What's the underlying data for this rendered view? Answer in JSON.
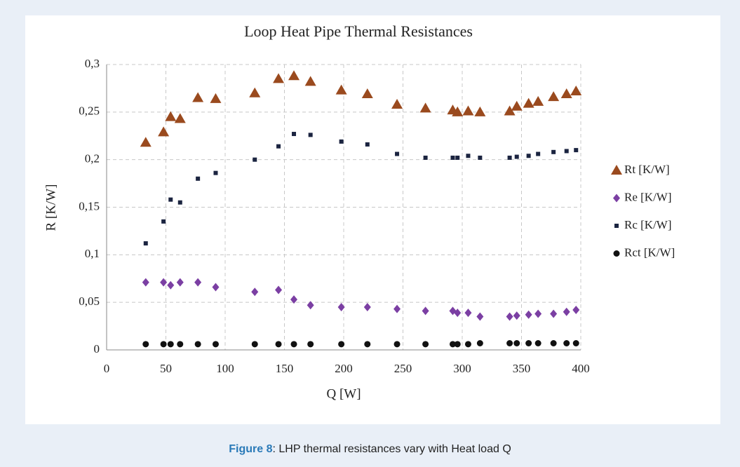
{
  "chart_data": {
    "type": "scatter",
    "title": "Loop Heat Pipe Thermal Resistances",
    "xlabel": "Q [W]",
    "ylabel": "R [K/W]",
    "x": [
      33,
      48,
      54,
      62,
      77,
      92,
      125,
      145,
      158,
      172,
      198,
      220,
      245,
      269,
      292,
      296,
      305,
      315,
      340,
      346,
      356,
      364,
      377,
      388,
      396
    ],
    "series": [
      {
        "name": "Rt [K/W]",
        "color": "#9a4a1e",
        "marker": "triangle",
        "values": [
          0.218,
          0.229,
          0.245,
          0.243,
          0.265,
          0.264,
          0.27,
          0.285,
          0.288,
          0.282,
          0.273,
          0.269,
          0.258,
          0.254,
          0.252,
          0.25,
          0.251,
          0.25,
          0.251,
          0.256,
          0.259,
          0.261,
          0.266,
          0.269,
          0.272
        ]
      },
      {
        "name": "Re [K/W]",
        "color": "#7b3fa3",
        "marker": "diamond",
        "values": [
          0.071,
          0.071,
          0.068,
          0.071,
          0.071,
          0.066,
          0.061,
          0.063,
          0.053,
          0.047,
          0.045,
          0.045,
          0.043,
          0.041,
          0.041,
          0.039,
          0.039,
          0.035,
          0.035,
          0.036,
          0.037,
          0.038,
          0.038,
          0.04,
          0.042
        ]
      },
      {
        "name": "Rc [K/W]",
        "color": "#1b2440",
        "marker": "square",
        "values": [
          0.112,
          0.135,
          0.158,
          0.155,
          0.18,
          0.186,
          0.2,
          0.214,
          0.227,
          0.226,
          0.219,
          0.216,
          0.206,
          0.202,
          0.202,
          0.202,
          0.204,
          0.202,
          0.202,
          0.203,
          0.204,
          0.206,
          0.208,
          0.209,
          0.21
        ]
      },
      {
        "name": "Rct [K/W]",
        "color": "#111111",
        "marker": "circle",
        "values": [
          0.006,
          0.006,
          0.006,
          0.006,
          0.006,
          0.006,
          0.006,
          0.006,
          0.006,
          0.006,
          0.006,
          0.006,
          0.006,
          0.006,
          0.006,
          0.006,
          0.006,
          0.007,
          0.007,
          0.007,
          0.007,
          0.007,
          0.007,
          0.007,
          0.007
        ]
      }
    ],
    "xlim": [
      0,
      400
    ],
    "xticks": [
      0,
      50,
      100,
      150,
      200,
      250,
      300,
      350,
      400
    ],
    "ylim": [
      0,
      0.3
    ],
    "yticks": [
      0,
      {
        "value": 0.05,
        "label": "0,05"
      },
      {
        "value": 0.1,
        "label": "0,1"
      },
      {
        "value": 0.15,
        "label": "0,15"
      },
      {
        "value": 0.2,
        "label": "0,2"
      },
      {
        "value": 0.25,
        "label": "0,25"
      },
      {
        "value": 0.3,
        "label": "0,3"
      }
    ],
    "grid": true,
    "legend": "right"
  },
  "caption": {
    "label": "Figure 8",
    "text": ": LHP thermal resistances vary with Heat load Q"
  }
}
